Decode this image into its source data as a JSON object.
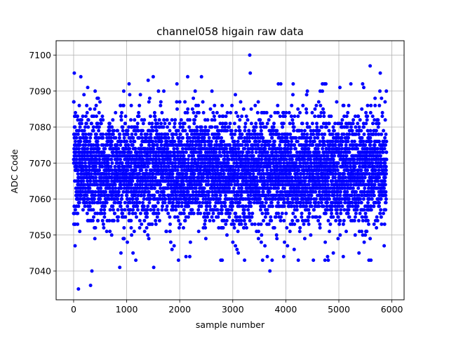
{
  "chart_data": {
    "type": "scatter",
    "title": "channel058 higain raw data",
    "xlabel": "sample number",
    "ylabel": "ADC Code",
    "xlim": [
      -330,
      6230
    ],
    "ylim": [
      7032,
      7104
    ],
    "xticks": [
      0,
      1000,
      2000,
      3000,
      4000,
      5000,
      6000
    ],
    "yticks": [
      7040,
      7050,
      7060,
      7070,
      7080,
      7090,
      7100
    ],
    "grid": true,
    "marker_color": "#0000ff",
    "series": [
      {
        "n_samples": 5900,
        "baseline": 7068,
        "spread_sigma": 7.5,
        "outliers": [
          [
            12,
            7095
          ],
          [
            90,
            7035
          ],
          [
            135,
            7094
          ],
          [
            195,
            7089
          ],
          [
            265,
            7091
          ],
          [
            320,
            7036
          ],
          [
            345,
            7040
          ],
          [
            405,
            7090
          ],
          [
            465,
            7088
          ],
          [
            870,
            7041
          ],
          [
            945,
            7090
          ],
          [
            1045,
            7092
          ],
          [
            1120,
            7045
          ],
          [
            1405,
            7093
          ],
          [
            1500,
            7094
          ],
          [
            1510,
            7041
          ],
          [
            1600,
            7090
          ],
          [
            1700,
            7090
          ],
          [
            1855,
            7046
          ],
          [
            2150,
            7094
          ],
          [
            2190,
            7044
          ],
          [
            2410,
            7094
          ],
          [
            2800,
            7043
          ],
          [
            3320,
            7100
          ],
          [
            3330,
            7095
          ],
          [
            3700,
            7040
          ],
          [
            3905,
            7092
          ],
          [
            3960,
            7044
          ],
          [
            4235,
            7043
          ],
          [
            4520,
            7043
          ],
          [
            4755,
            7092
          ],
          [
            4800,
            7043
          ],
          [
            4895,
            7045
          ],
          [
            5020,
            7091
          ],
          [
            5380,
            7045
          ],
          [
            5470,
            7091
          ],
          [
            5590,
            7097
          ],
          [
            5605,
            7043
          ],
          [
            5780,
            7095
          ],
          [
            5895,
            7090
          ]
        ]
      }
    ]
  }
}
